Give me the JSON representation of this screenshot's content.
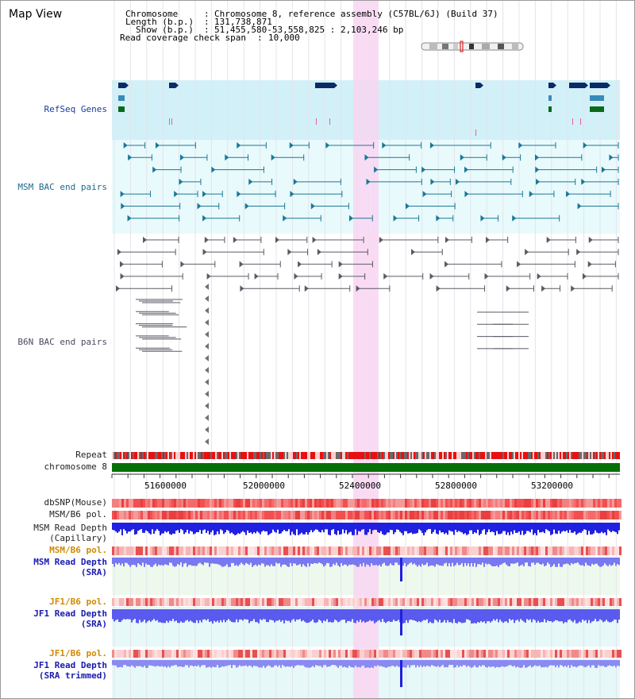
{
  "title": "Map View",
  "header": {
    "chromosome_label": "Chromosome",
    "chromosome_value": "Chromosome 8, reference assembly (C57BL/6J) (Build 37)",
    "length_label": "Length (b.p.)",
    "length_value": "131,738,871",
    "show_label": "Show (b.p.)",
    "show_value": "51,455,580-53,558,825 : 2,103,246 bp",
    "coverage_label": "Read coverage check span",
    "coverage_value": "10,000",
    "sep": ":"
  },
  "tracks": {
    "refseq": "RefSeq Genes",
    "msm_bac": "MSM BAC end pairs",
    "b6n_bac": "B6N BAC end pairs",
    "repeat": "Repeat",
    "chromosome": "chromosome 8",
    "dbsnp": "dbSNP(Mouse)",
    "msm_b6_pol": "MSM/B6 pol.",
    "msm_read_depth_1": "MSM Read Depth",
    "msm_read_depth_1b": "(Capillary)",
    "msm_b6_pol_2": "MSM/B6 pol.",
    "msm_read_depth_sra": "MSM Read Depth",
    "msm_read_depth_sra_b": "(SRA)",
    "jf1_b6_pol": "JF1/B6 pol.",
    "jf1_read_depth": "JF1 Read Depth",
    "jf1_read_depth_b": "(SRA)",
    "jf1_b6_pol_2": "JF1/B6 pol.",
    "jf1_read_depth_trim": "JF1 Read Depth",
    "jf1_read_depth_trim_b": "(SRA trimmed)"
  },
  "axis": {
    "ticks": [
      "51600000",
      "52000000",
      "52400000",
      "52800000",
      "53200000"
    ]
  },
  "colors": {
    "refseq_bg": "#d2f0f8",
    "msm_bac_bg": "#e8fafc",
    "highlight": "#f8d6f2",
    "chromosome_bar": "#067006",
    "refseq_label": "#1a3aa0",
    "msm_label": "#1a6b8a",
    "b6n_label": "#4a4a60",
    "orange_label": "#d08a00",
    "blue_label": "#1a1ab0"
  }
}
